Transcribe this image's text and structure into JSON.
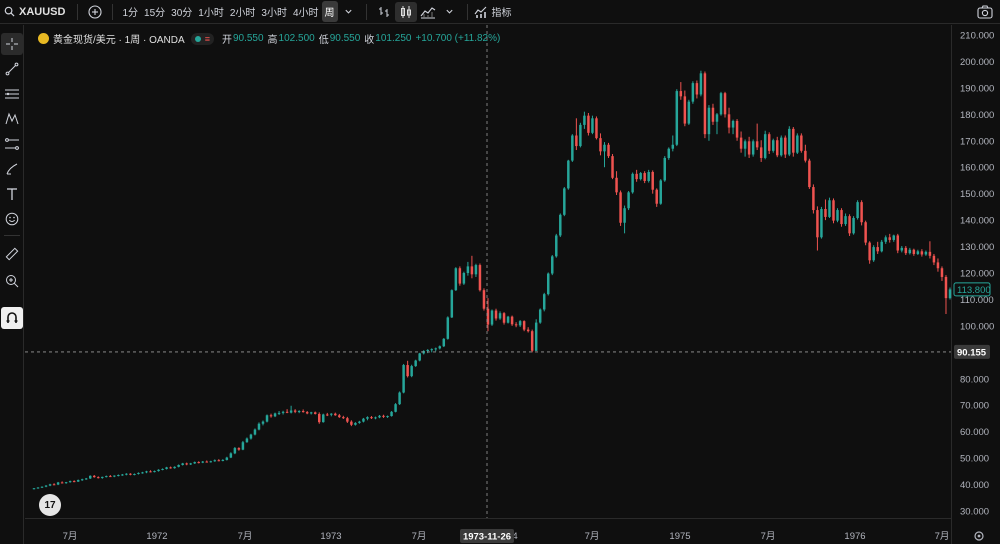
{
  "toolbar": {
    "symbol": "XAUUSD",
    "timeframes": [
      "1分",
      "15分",
      "30分",
      "1小时",
      "2小时",
      "3小时",
      "4小时",
      "周"
    ],
    "active_timeframe": "周",
    "indicators_label": "指标"
  },
  "legend": {
    "instrument": "黄金现货/美元 · 1周 · OANDA",
    "open_label": "开",
    "open": "90.550",
    "high_label": "高",
    "high": "102.500",
    "low_label": "低",
    "low": "90.550",
    "close_label": "收",
    "close": "101.250",
    "change": "+10.700 (+11.82%)"
  },
  "crosshair": {
    "price_label": "90.155",
    "date_label": "1973-11-26"
  },
  "last_price_label": "113.800",
  "colors": {
    "up": "#26a69a",
    "down": "#ef5350",
    "background": "#0f0f0f"
  },
  "chart_data": {
    "type": "candlestick",
    "y_ticks": [
      "210.000",
      "200.000",
      "190.000",
      "180.000",
      "170.000",
      "160.000",
      "150.000",
      "140.000",
      "130.000",
      "120.000",
      "110.000",
      "100.000",
      "90.000",
      "80.000",
      "70.000",
      "60.000",
      "50.000",
      "40.000",
      "30.000"
    ],
    "x_ticks": [
      "7月",
      "1972",
      "7月",
      "1973",
      "7月",
      "4",
      "7月",
      "1975",
      "7月",
      "1976",
      "7月"
    ],
    "ylim": [
      26,
      214
    ],
    "grid": false,
    "series": [
      [
        38.5,
        38.7,
        38.2,
        38.6
      ],
      [
        38.6,
        39.0,
        38.4,
        38.9
      ],
      [
        38.9,
        39.3,
        38.7,
        39.2
      ],
      [
        39.2,
        39.8,
        39.0,
        39.6
      ],
      [
        39.6,
        40.3,
        39.4,
        40.1
      ],
      [
        40.1,
        40.5,
        39.8,
        40.0
      ],
      [
        40.0,
        41.0,
        39.8,
        40.8
      ],
      [
        40.8,
        41.2,
        40.4,
        40.6
      ],
      [
        40.6,
        41.0,
        40.3,
        40.9
      ],
      [
        40.9,
        41.5,
        40.7,
        41.3
      ],
      [
        41.3,
        41.6,
        40.9,
        41.1
      ],
      [
        41.1,
        41.9,
        41.0,
        41.7
      ],
      [
        41.7,
        42.2,
        41.4,
        42.0
      ],
      [
        42.0,
        42.5,
        41.8,
        42.3
      ],
      [
        42.3,
        43.5,
        42.1,
        43.3
      ],
      [
        43.3,
        43.6,
        42.6,
        42.8
      ],
      [
        42.8,
        43.1,
        42.3,
        42.5
      ],
      [
        42.5,
        43.0,
        42.2,
        42.9
      ],
      [
        42.9,
        43.4,
        42.7,
        43.2
      ],
      [
        43.2,
        43.6,
        42.9,
        43.1
      ],
      [
        43.1,
        43.5,
        42.8,
        43.4
      ],
      [
        43.4,
        43.8,
        43.1,
        43.6
      ],
      [
        43.6,
        44.0,
        43.3,
        43.8
      ],
      [
        43.8,
        44.3,
        43.5,
        44.1
      ],
      [
        44.1,
        44.3,
        43.5,
        43.7
      ],
      [
        43.7,
        44.2,
        43.5,
        44.0
      ],
      [
        44.0,
        44.6,
        43.8,
        44.4
      ],
      [
        44.4,
        44.8,
        44.1,
        44.6
      ],
      [
        44.6,
        45.2,
        44.3,
        45.0
      ],
      [
        45.0,
        45.4,
        44.6,
        44.8
      ],
      [
        44.8,
        45.3,
        44.6,
        45.1
      ],
      [
        45.1,
        45.8,
        44.9,
        45.6
      ],
      [
        45.6,
        46.1,
        45.4,
        45.9
      ],
      [
        45.9,
        46.7,
        45.7,
        46.5
      ],
      [
        46.5,
        46.8,
        46.0,
        46.2
      ],
      [
        46.2,
        46.9,
        46.0,
        46.7
      ],
      [
        46.7,
        47.6,
        46.5,
        47.4
      ],
      [
        47.4,
        48.2,
        47.2,
        48.0
      ],
      [
        48.0,
        48.3,
        47.3,
        47.6
      ],
      [
        47.6,
        48.2,
        47.4,
        48.0
      ],
      [
        48.0,
        48.7,
        47.8,
        48.5
      ],
      [
        48.5,
        48.8,
        48.0,
        48.3
      ],
      [
        48.3,
        48.9,
        48.1,
        48.7
      ],
      [
        48.7,
        49.1,
        48.3,
        48.6
      ],
      [
        48.6,
        49.0,
        48.3,
        48.8
      ],
      [
        48.8,
        49.5,
        48.6,
        49.2
      ],
      [
        49.2,
        49.6,
        48.8,
        49.0
      ],
      [
        49.0,
        49.6,
        48.8,
        49.3
      ],
      [
        49.3,
        50.5,
        49.1,
        50.2
      ],
      [
        50.2,
        52.2,
        50.0,
        51.8
      ],
      [
        51.8,
        54.2,
        51.5,
        53.8
      ],
      [
        53.8,
        54.1,
        52.8,
        53.2
      ],
      [
        53.2,
        56.5,
        53.0,
        56.0
      ],
      [
        56.0,
        57.8,
        55.8,
        57.4
      ],
      [
        57.4,
        59.2,
        57.0,
        58.9
      ],
      [
        58.9,
        61.2,
        58.6,
        60.8
      ],
      [
        60.8,
        63.5,
        60.5,
        63.0
      ],
      [
        63.0,
        64.2,
        62.4,
        63.8
      ],
      [
        63.8,
        66.5,
        63.5,
        66.2
      ],
      [
        66.2,
        66.8,
        65.3,
        65.8
      ],
      [
        65.8,
        67.2,
        65.5,
        66.9
      ],
      [
        66.9,
        67.8,
        66.3,
        67.1
      ],
      [
        67.1,
        67.9,
        66.5,
        67.5
      ],
      [
        67.5,
        68.5,
        67.0,
        67.2
      ],
      [
        67.2,
        69.8,
        66.9,
        68.0
      ],
      [
        68.0,
        68.5,
        67.0,
        67.5
      ],
      [
        67.5,
        68.1,
        67.0,
        67.8
      ],
      [
        67.8,
        68.4,
        67.2,
        67.4
      ],
      [
        67.4,
        67.8,
        66.6,
        66.9
      ],
      [
        66.9,
        67.5,
        66.5,
        67.3
      ],
      [
        67.3,
        67.6,
        66.5,
        66.7
      ],
      [
        66.7,
        67.3,
        63.0,
        63.6
      ],
      [
        63.6,
        66.8,
        63.4,
        66.5
      ],
      [
        66.5,
        67.1,
        65.9,
        66.4
      ],
      [
        66.4,
        67.0,
        65.8,
        66.8
      ],
      [
        66.8,
        67.2,
        66.0,
        66.2
      ],
      [
        66.2,
        66.7,
        65.2,
        65.5
      ],
      [
        65.5,
        66.0,
        64.8,
        65.1
      ],
      [
        65.1,
        65.6,
        63.3,
        63.8
      ],
      [
        63.8,
        64.3,
        62.1,
        62.6
      ],
      [
        62.6,
        63.6,
        62.3,
        63.3
      ],
      [
        63.3,
        64.1,
        63.0,
        63.8
      ],
      [
        63.8,
        65.2,
        63.5,
        64.9
      ],
      [
        64.9,
        65.8,
        64.3,
        65.5
      ],
      [
        65.5,
        65.9,
        64.8,
        65.1
      ],
      [
        65.1,
        65.7,
        64.7,
        65.4
      ],
      [
        65.4,
        66.3,
        65.1,
        66.0
      ],
      [
        66.0,
        66.4,
        65.2,
        65.6
      ],
      [
        65.6,
        66.1,
        65.2,
        65.9
      ],
      [
        65.9,
        67.8,
        65.7,
        67.5
      ],
      [
        67.5,
        70.8,
        67.3,
        70.4
      ],
      [
        70.4,
        75.2,
        70.1,
        74.8
      ],
      [
        74.8,
        85.6,
        74.5,
        85.2
      ],
      [
        85.2,
        86.8,
        80.5,
        81.0
      ],
      [
        81.0,
        85.3,
        80.6,
        84.8
      ],
      [
        84.8,
        87.2,
        84.5,
        86.9
      ],
      [
        86.9,
        89.8,
        86.6,
        89.6
      ],
      [
        89.6,
        90.8,
        89.2,
        90.5
      ],
      [
        90.5,
        91.2,
        89.7,
        90.9
      ],
      [
        90.9,
        91.5,
        90.0,
        91.2
      ],
      [
        91.2,
        91.8,
        90.4,
        91.5
      ],
      [
        91.5,
        92.6,
        91.1,
        92.3
      ],
      [
        92.3,
        95.4,
        92.0,
        95.1
      ],
      [
        95.1,
        103.6,
        94.8,
        103.2
      ],
      [
        103.2,
        113.8,
        103.0,
        113.5
      ],
      [
        113.5,
        122.2,
        113.2,
        121.8
      ],
      [
        121.8,
        122.5,
        115.2,
        116.0
      ],
      [
        116.0,
        120.5,
        115.5,
        120.0
      ],
      [
        120.0,
        124.2,
        119.0,
        122.5
      ],
      [
        122.5,
        126.5,
        118.0,
        119.5
      ],
      [
        119.5,
        123.5,
        118.5,
        123.0
      ],
      [
        123.0,
        123.6,
        113.0,
        113.5
      ],
      [
        113.5,
        114.2,
        105.8,
        106.5
      ],
      [
        106.5,
        110.5,
        98.0,
        100.5
      ],
      [
        100.5,
        106.2,
        100.0,
        105.8
      ],
      [
        105.8,
        106.5,
        102.0,
        102.8
      ],
      [
        102.8,
        105.5,
        102.3,
        104.8
      ],
      [
        104.8,
        105.2,
        100.5,
        101.2
      ],
      [
        101.2,
        103.8,
        100.9,
        103.5
      ],
      [
        103.5,
        103.9,
        100.0,
        100.6
      ],
      [
        100.6,
        101.4,
        99.5,
        100.2
      ],
      [
        100.2,
        102.2,
        99.6,
        101.8
      ],
      [
        101.8,
        102.1,
        98.0,
        98.6
      ],
      [
        98.6,
        99.5,
        97.5,
        98.0
      ],
      [
        98.0,
        98.6,
        90.0,
        90.6
      ],
      [
        90.55,
        102.5,
        90.55,
        101.25
      ],
      [
        101.25,
        106.6,
        100.8,
        106.2
      ],
      [
        106.2,
        112.5,
        105.5,
        112.0
      ],
      [
        112.0,
        120.2,
        111.5,
        119.8
      ],
      [
        119.8,
        126.8,
        119.2,
        126.3
      ],
      [
        126.3,
        134.8,
        125.8,
        134.2
      ],
      [
        134.2,
        142.5,
        133.6,
        142.0
      ],
      [
        142.0,
        152.5,
        141.5,
        152.0
      ],
      [
        152.0,
        162.8,
        151.5,
        162.5
      ],
      [
        162.5,
        172.5,
        162.0,
        172.0
      ],
      [
        172.0,
        178.5,
        166.5,
        168.0
      ],
      [
        168.0,
        176.8,
        167.5,
        176.0
      ],
      [
        176.0,
        181.0,
        174.5,
        179.5
      ],
      [
        179.5,
        180.5,
        172.0,
        173.0
      ],
      [
        173.0,
        179.5,
        172.5,
        178.5
      ],
      [
        178.5,
        179.2,
        170.5,
        171.0
      ],
      [
        171.0,
        172.8,
        164.5,
        166.0
      ],
      [
        166.0,
        169.5,
        160.0,
        168.5
      ],
      [
        168.5,
        169.2,
        163.5,
        164.2
      ],
      [
        164.2,
        165.0,
        155.5,
        156.0
      ],
      [
        156.0,
        158.5,
        149.5,
        150.5
      ],
      [
        150.5,
        151.2,
        137.8,
        139.0
      ],
      [
        139.0,
        145.5,
        135.0,
        144.5
      ],
      [
        144.5,
        151.0,
        143.8,
        150.5
      ],
      [
        150.5,
        158.0,
        150.0,
        157.5
      ],
      [
        157.5,
        159.0,
        154.5,
        155.5
      ],
      [
        155.5,
        158.2,
        155.0,
        157.8
      ],
      [
        157.8,
        158.5,
        154.0,
        154.8
      ],
      [
        154.8,
        159.0,
        154.2,
        158.2
      ],
      [
        158.2,
        158.8,
        150.0,
        151.5
      ],
      [
        151.5,
        152.0,
        145.0,
        146.2
      ],
      [
        146.2,
        155.5,
        145.8,
        155.0
      ],
      [
        155.0,
        164.2,
        154.5,
        163.5
      ],
      [
        163.5,
        167.5,
        162.8,
        167.0
      ],
      [
        167.0,
        172.0,
        166.0,
        168.5
      ],
      [
        168.5,
        189.5,
        168.0,
        188.8
      ],
      [
        188.8,
        192.2,
        185.5,
        186.8
      ],
      [
        186.8,
        189.0,
        175.5,
        176.5
      ],
      [
        176.5,
        185.5,
        176.0,
        184.8
      ],
      [
        184.8,
        192.5,
        184.0,
        191.8
      ],
      [
        191.8,
        192.8,
        186.0,
        187.5
      ],
      [
        187.5,
        196.5,
        186.8,
        195.5
      ],
      [
        195.5,
        196.2,
        171.0,
        172.5
      ],
      [
        172.5,
        183.5,
        170.0,
        182.5
      ],
      [
        182.5,
        184.0,
        176.0,
        177.2
      ],
      [
        177.2,
        180.5,
        172.5,
        180.0
      ],
      [
        180.0,
        188.5,
        179.5,
        188.0
      ],
      [
        188.0,
        188.5,
        178.8,
        180.0
      ],
      [
        180.0,
        182.5,
        172.8,
        175.0
      ],
      [
        175.0,
        178.0,
        172.5,
        177.5
      ],
      [
        177.5,
        178.2,
        170.0,
        171.2
      ],
      [
        171.2,
        173.5,
        165.5,
        167.0
      ],
      [
        167.0,
        170.5,
        164.0,
        169.8
      ],
      [
        169.8,
        171.5,
        163.5,
        164.8
      ],
      [
        164.8,
        170.5,
        164.0,
        169.8
      ],
      [
        169.8,
        176.5,
        166.5,
        167.5
      ],
      [
        167.5,
        170.2,
        162.0,
        163.5
      ],
      [
        163.5,
        173.8,
        163.0,
        172.5
      ],
      [
        172.5,
        173.2,
        165.0,
        166.2
      ],
      [
        166.2,
        170.8,
        165.5,
        170.2
      ],
      [
        170.2,
        171.5,
        163.8,
        164.5
      ],
      [
        164.5,
        172.0,
        164.0,
        171.2
      ],
      [
        171.2,
        172.0,
        163.5,
        164.8
      ],
      [
        164.8,
        175.5,
        164.2,
        174.5
      ],
      [
        174.5,
        175.2,
        164.0,
        165.5
      ],
      [
        165.5,
        172.8,
        165.0,
        172.0
      ],
      [
        172.0,
        172.8,
        165.5,
        166.2
      ],
      [
        166.2,
        168.5,
        161.8,
        162.5
      ],
      [
        162.5,
        163.2,
        151.8,
        152.5
      ],
      [
        152.5,
        153.5,
        142.5,
        143.8
      ],
      [
        143.8,
        145.2,
        128.5,
        133.5
      ],
      [
        133.5,
        145.0,
        133.0,
        144.2
      ],
      [
        144.2,
        147.8,
        140.0,
        141.2
      ],
      [
        141.2,
        148.5,
        140.8,
        147.5
      ],
      [
        147.5,
        148.2,
        138.8,
        139.8
      ],
      [
        139.8,
        144.5,
        139.2,
        143.8
      ],
      [
        143.8,
        144.5,
        137.5,
        138.5
      ],
      [
        138.5,
        142.5,
        137.8,
        141.5
      ],
      [
        141.5,
        142.2,
        134.0,
        135.0
      ],
      [
        135.0,
        141.5,
        134.5,
        140.8
      ],
      [
        140.8,
        147.5,
        140.2,
        146.8
      ],
      [
        146.8,
        147.5,
        138.0,
        139.2
      ],
      [
        139.2,
        139.8,
        130.5,
        131.5
      ],
      [
        131.5,
        132.0,
        123.5,
        124.8
      ],
      [
        124.8,
        130.5,
        124.2,
        129.8
      ],
      [
        129.8,
        131.8,
        127.2,
        128.2
      ],
      [
        128.2,
        132.5,
        127.8,
        131.8
      ],
      [
        131.8,
        134.2,
        131.0,
        133.5
      ],
      [
        133.5,
        134.8,
        131.5,
        132.5
      ],
      [
        132.5,
        134.5,
        131.8,
        134.2
      ],
      [
        134.2,
        134.8,
        127.5,
        128.5
      ],
      [
        128.5,
        130.2,
        127.8,
        129.5
      ],
      [
        129.5,
        130.2,
        126.8,
        127.5
      ],
      [
        127.5,
        129.5,
        127.0,
        128.8
      ],
      [
        128.8,
        129.2,
        126.5,
        127.2
      ],
      [
        127.2,
        128.8,
        126.8,
        128.2
      ],
      [
        128.2,
        129.0,
        126.2,
        127.0
      ],
      [
        127.0,
        128.5,
        126.5,
        128.0
      ],
      [
        128.0,
        132.0,
        125.5,
        126.5
      ],
      [
        126.5,
        127.2,
        123.0,
        124.0
      ],
      [
        124.0,
        125.5,
        120.5,
        121.8
      ],
      [
        121.8,
        122.5,
        117.0,
        118.5
      ],
      [
        118.5,
        119.2,
        104.5,
        110.5
      ],
      [
        110.5,
        114.5,
        110.0,
        113.8
      ]
    ]
  }
}
